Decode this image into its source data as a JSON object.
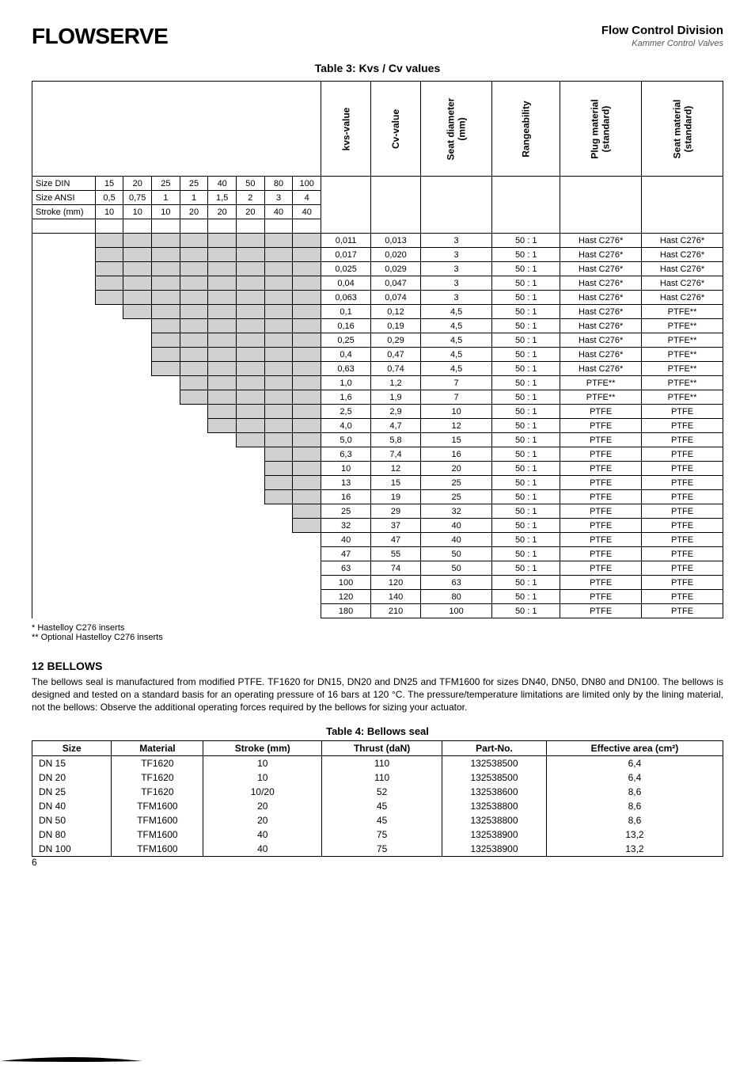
{
  "header": {
    "logo_text": "FLOWSERVE",
    "division": "Flow Control Division",
    "subbrand": "Kammer Control Valves"
  },
  "table3": {
    "caption": "Table 3: Kvs / Cv values",
    "vheaders": [
      "kvs-value",
      "Cv-value",
      "Seat diameter\n(mm)",
      "Rangeability",
      "Plug material\n(standard)",
      "Seat material\n(standard)"
    ],
    "size_rows": [
      {
        "label": "Size DIN",
        "cells": [
          "15",
          "20",
          "25",
          "25",
          "40",
          "50",
          "80",
          "100"
        ]
      },
      {
        "label": "Size ANSI",
        "cells": [
          "0,5",
          "0,75",
          "1",
          "1",
          "1,5",
          "2",
          "3",
          "4"
        ]
      },
      {
        "label": "Stroke (mm)",
        "cells": [
          "10",
          "10",
          "10",
          "20",
          "20",
          "20",
          "40",
          "40"
        ]
      }
    ],
    "gray_spans": [
      8,
      8,
      8,
      8,
      8,
      7,
      6,
      6,
      6,
      6,
      5,
      5,
      4,
      4,
      3,
      2,
      2,
      2,
      2,
      1,
      1,
      0,
      0,
      0,
      0,
      0,
      0
    ],
    "data_rows": [
      [
        "0,011",
        "0,013",
        "3",
        "50 : 1",
        "Hast C276*",
        "Hast C276*"
      ],
      [
        "0,017",
        "0,020",
        "3",
        "50 : 1",
        "Hast C276*",
        "Hast C276*"
      ],
      [
        "0,025",
        "0,029",
        "3",
        "50 : 1",
        "Hast C276*",
        "Hast C276*"
      ],
      [
        "0,04",
        "0,047",
        "3",
        "50 : 1",
        "Hast C276*",
        "Hast C276*"
      ],
      [
        "0,063",
        "0,074",
        "3",
        "50 : 1",
        "Hast C276*",
        "Hast C276*"
      ],
      [
        "0,1",
        "0,12",
        "4,5",
        "50 : 1",
        "Hast C276*",
        "PTFE**"
      ],
      [
        "0,16",
        "0,19",
        "4,5",
        "50 : 1",
        "Hast C276*",
        "PTFE**"
      ],
      [
        "0,25",
        "0,29",
        "4,5",
        "50 : 1",
        "Hast C276*",
        "PTFE**"
      ],
      [
        "0,4",
        "0,47",
        "4,5",
        "50 : 1",
        "Hast C276*",
        "PTFE**"
      ],
      [
        "0,63",
        "0,74",
        "4,5",
        "50 : 1",
        "Hast C276*",
        "PTFE**"
      ],
      [
        "1,0",
        "1,2",
        "7",
        "50 : 1",
        "PTFE**",
        "PTFE**"
      ],
      [
        "1,6",
        "1,9",
        "7",
        "50 : 1",
        "PTFE**",
        "PTFE**"
      ],
      [
        "2,5",
        "2,9",
        "10",
        "50 : 1",
        "PTFE",
        "PTFE"
      ],
      [
        "4,0",
        "4,7",
        "12",
        "50 : 1",
        "PTFE",
        "PTFE"
      ],
      [
        "5,0",
        "5,8",
        "15",
        "50 : 1",
        "PTFE",
        "PTFE"
      ],
      [
        "6,3",
        "7,4",
        "16",
        "50 : 1",
        "PTFE",
        "PTFE"
      ],
      [
        "10",
        "12",
        "20",
        "50 : 1",
        "PTFE",
        "PTFE"
      ],
      [
        "13",
        "15",
        "25",
        "50 : 1",
        "PTFE",
        "PTFE"
      ],
      [
        "16",
        "19",
        "25",
        "50 : 1",
        "PTFE",
        "PTFE"
      ],
      [
        "25",
        "29",
        "32",
        "50 : 1",
        "PTFE",
        "PTFE"
      ],
      [
        "32",
        "37",
        "40",
        "50 : 1",
        "PTFE",
        "PTFE"
      ],
      [
        "40",
        "47",
        "40",
        "50 : 1",
        "PTFE",
        "PTFE"
      ],
      [
        "47",
        "55",
        "50",
        "50 : 1",
        "PTFE",
        "PTFE"
      ],
      [
        "63",
        "74",
        "50",
        "50 : 1",
        "PTFE",
        "PTFE"
      ],
      [
        "100",
        "120",
        "63",
        "50 : 1",
        "PTFE",
        "PTFE"
      ],
      [
        "120",
        "140",
        "80",
        "50 : 1",
        "PTFE",
        "PTFE"
      ],
      [
        "180",
        "210",
        "100",
        "50 : 1",
        "PTFE",
        "PTFE"
      ]
    ],
    "col_widths": {
      "label": 76,
      "size": 34,
      "kvs": 60,
      "cv": 60,
      "seat": 86,
      "range": 82,
      "plug": 98,
      "seatmat": 98
    }
  },
  "footnotes": [
    "*   Hastelloy C276 inserts",
    "** Optional Hastelloy C276 inserts"
  ],
  "section12": {
    "heading": "12    BELLOWS",
    "body": "The bellows seal is manufactured from modified PTFE. TF1620 for DN15, DN20 and DN25 and TFM1600 for sizes DN40, DN50, DN80 and DN100. The bellows is designed and tested on a standard basis for an operating pressure of 16 bars at 120 °C. The pressure/temperature limitations are limited only by the lining material, not the bellows: Observe the additional operating forces required by the bellows for sizing your actuator."
  },
  "table4": {
    "caption": "Table 4: Bellows seal",
    "columns": [
      "Size",
      "Material",
      "Stroke (mm)",
      "Thrust (daN)",
      "Part-No.",
      "Effective area (cm²)"
    ],
    "rows": [
      [
        "DN 15",
        "TF1620",
        "10",
        "110",
        "132538500",
        "6,4"
      ],
      [
        "DN 20",
        "TF1620",
        "10",
        "110",
        "132538500",
        "6,4"
      ],
      [
        "DN 25",
        "TF1620",
        "10/20",
        "52",
        "132538600",
        "8,6"
      ],
      [
        "DN 40",
        "TFM1600",
        "20",
        "45",
        "132538800",
        "8,6"
      ],
      [
        "DN 50",
        "TFM1600",
        "20",
        "45",
        "132538800",
        "8,6"
      ],
      [
        "DN 80",
        "TFM1600",
        "40",
        "75",
        "132538900",
        "13,2"
      ],
      [
        "DN 100",
        "TFM1600",
        "40",
        "75",
        "132538900",
        "13,2"
      ]
    ]
  },
  "page_number": "6"
}
